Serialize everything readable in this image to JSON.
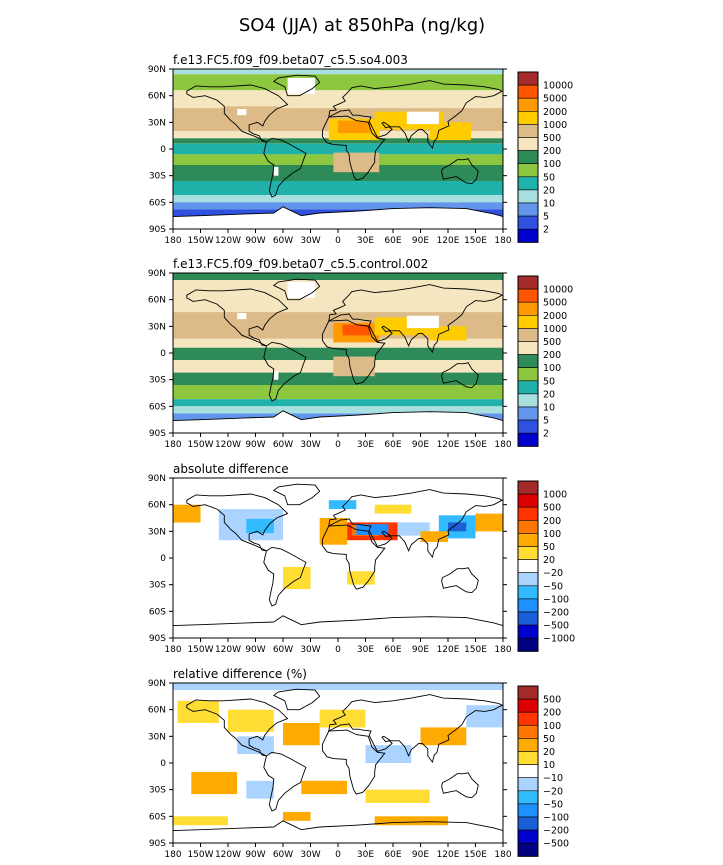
{
  "title": "SO4 (JJA) at 850hPa (ng/kg)",
  "chart_data": {
    "type": "heatmap",
    "lat_ticks": [
      "90N",
      "60N",
      "30N",
      "0",
      "30S",
      "60S",
      "90S"
    ],
    "lon_ticks": [
      "180",
      "150W",
      "120W",
      "90W",
      "60W",
      "30W",
      "0",
      "30E",
      "60E",
      "90E",
      "120E",
      "150E",
      "180"
    ],
    "panels": [
      {
        "subtitle": "f.e13.FC5.f09_f09.beta07_c5.5.so4.003",
        "legend": [
          "10000",
          "5000",
          "2000",
          "1000",
          "500",
          "200",
          "100",
          "50",
          "20",
          "10",
          "5",
          "2"
        ],
        "colors": [
          "#a52a2a",
          "#ff5500",
          "#ff9900",
          "#ffcc00",
          "#ddbb88",
          "#f5e6c0",
          "#2e8b57",
          "#8dc63f",
          "#20b2aa",
          "#a8e0e0",
          "#6495ed",
          "#3050e0",
          "#0000cd"
        ]
      },
      {
        "subtitle": "f.e13.FC5.f09_f09.beta07_c5.5.control.002",
        "legend": [
          "10000",
          "5000",
          "2000",
          "1000",
          "500",
          "200",
          "100",
          "50",
          "20",
          "10",
          "5",
          "2"
        ],
        "colors": [
          "#a52a2a",
          "#ff5500",
          "#ff9900",
          "#ffcc00",
          "#ddbb88",
          "#f5e6c0",
          "#2e8b57",
          "#8dc63f",
          "#20b2aa",
          "#a8e0e0",
          "#6495ed",
          "#3050e0",
          "#0000cd"
        ]
      },
      {
        "subtitle": "absolute difference",
        "legend": [
          "1000",
          "500",
          "200",
          "100",
          "50",
          "20",
          "−20",
          "−50",
          "−100",
          "−200",
          "−500",
          "−1000"
        ],
        "colors": [
          "#a52a2a",
          "#dd0000",
          "#ff3300",
          "#ff7700",
          "#ffaa00",
          "#ffdd33",
          "#ffffff",
          "#aad4ff",
          "#33bbff",
          "#1e90ff",
          "#1a5fd6",
          "#0000cc",
          "#000080"
        ]
      },
      {
        "subtitle": "relative difference (%)",
        "legend": [
          "500",
          "200",
          "100",
          "50",
          "20",
          "10",
          "−10",
          "−20",
          "−50",
          "−100",
          "−200",
          "−500"
        ],
        "colors": [
          "#a52a2a",
          "#dd0000",
          "#ff3300",
          "#ff7700",
          "#ffaa00",
          "#ffdd33",
          "#ffffff",
          "#aad4ff",
          "#33bbff",
          "#1e90ff",
          "#1a5fd6",
          "#0000cc",
          "#000080"
        ]
      }
    ]
  }
}
